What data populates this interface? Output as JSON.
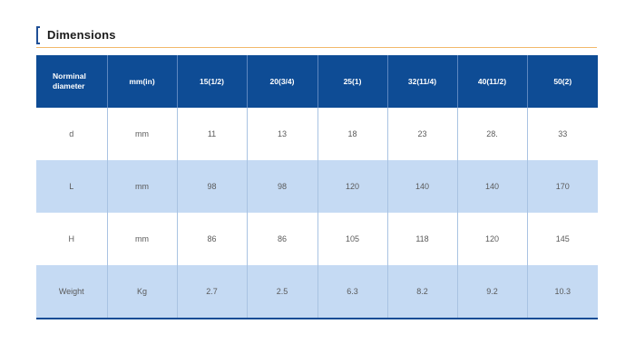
{
  "section": {
    "title": "Dimensions"
  },
  "table": {
    "headers": [
      "Norminal diameter",
      "mm(in)",
      "15(1/2)",
      "20(3/4)",
      "25(1)",
      "32(11/4)",
      "40(11/2)",
      "50(2)"
    ],
    "rows": [
      [
        "d",
        "mm",
        "11",
        "13",
        "18",
        "23",
        "28.",
        "33"
      ],
      [
        "L",
        "mm",
        "98",
        "98",
        "120",
        "140",
        "140",
        "170"
      ],
      [
        "H",
        "mm",
        "86",
        "86",
        "105",
        "118",
        "120",
        "145"
      ],
      [
        "Weight",
        "Kg",
        "2.7",
        "2.5",
        "6.3",
        "8.2",
        "9.2",
        "10.3"
      ]
    ]
  },
  "colors": {
    "header_bg": "#0e4c95",
    "stripe_bg": "#c5daf3",
    "accent_line": "#f2b96a"
  }
}
